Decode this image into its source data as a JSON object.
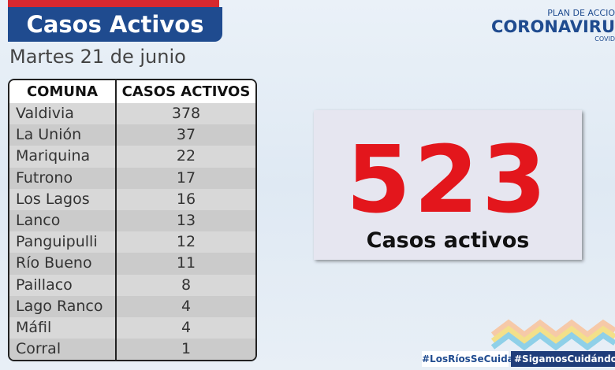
{
  "header": {
    "title": "Casos Activos",
    "date": "Martes 21 de junio"
  },
  "logo": {
    "line1": "PLAN DE ACCIO",
    "line2": "CORONAVIRU",
    "line3": "COVID"
  },
  "table": {
    "header": [
      "COMUNA",
      "CASOS ACTIVOS"
    ],
    "rows": [
      [
        "Valdivia",
        378
      ],
      [
        "La Unión",
        37
      ],
      [
        "Mariquina",
        22
      ],
      [
        "Futrono",
        17
      ],
      [
        "Los Lagos",
        16
      ],
      [
        "Lanco",
        13
      ],
      [
        "Panguipulli",
        12
      ],
      [
        "Río Bueno",
        11
      ],
      [
        "Paillaco",
        8
      ],
      [
        "Lago Ranco",
        4
      ],
      [
        "Máfil",
        4
      ],
      [
        "Corral",
        1
      ]
    ]
  },
  "total": {
    "value": 523,
    "label": "Casos activos"
  },
  "hashtags": [
    "#LosRíosSeCuida",
    "#SigamosCuidándon"
  ]
}
